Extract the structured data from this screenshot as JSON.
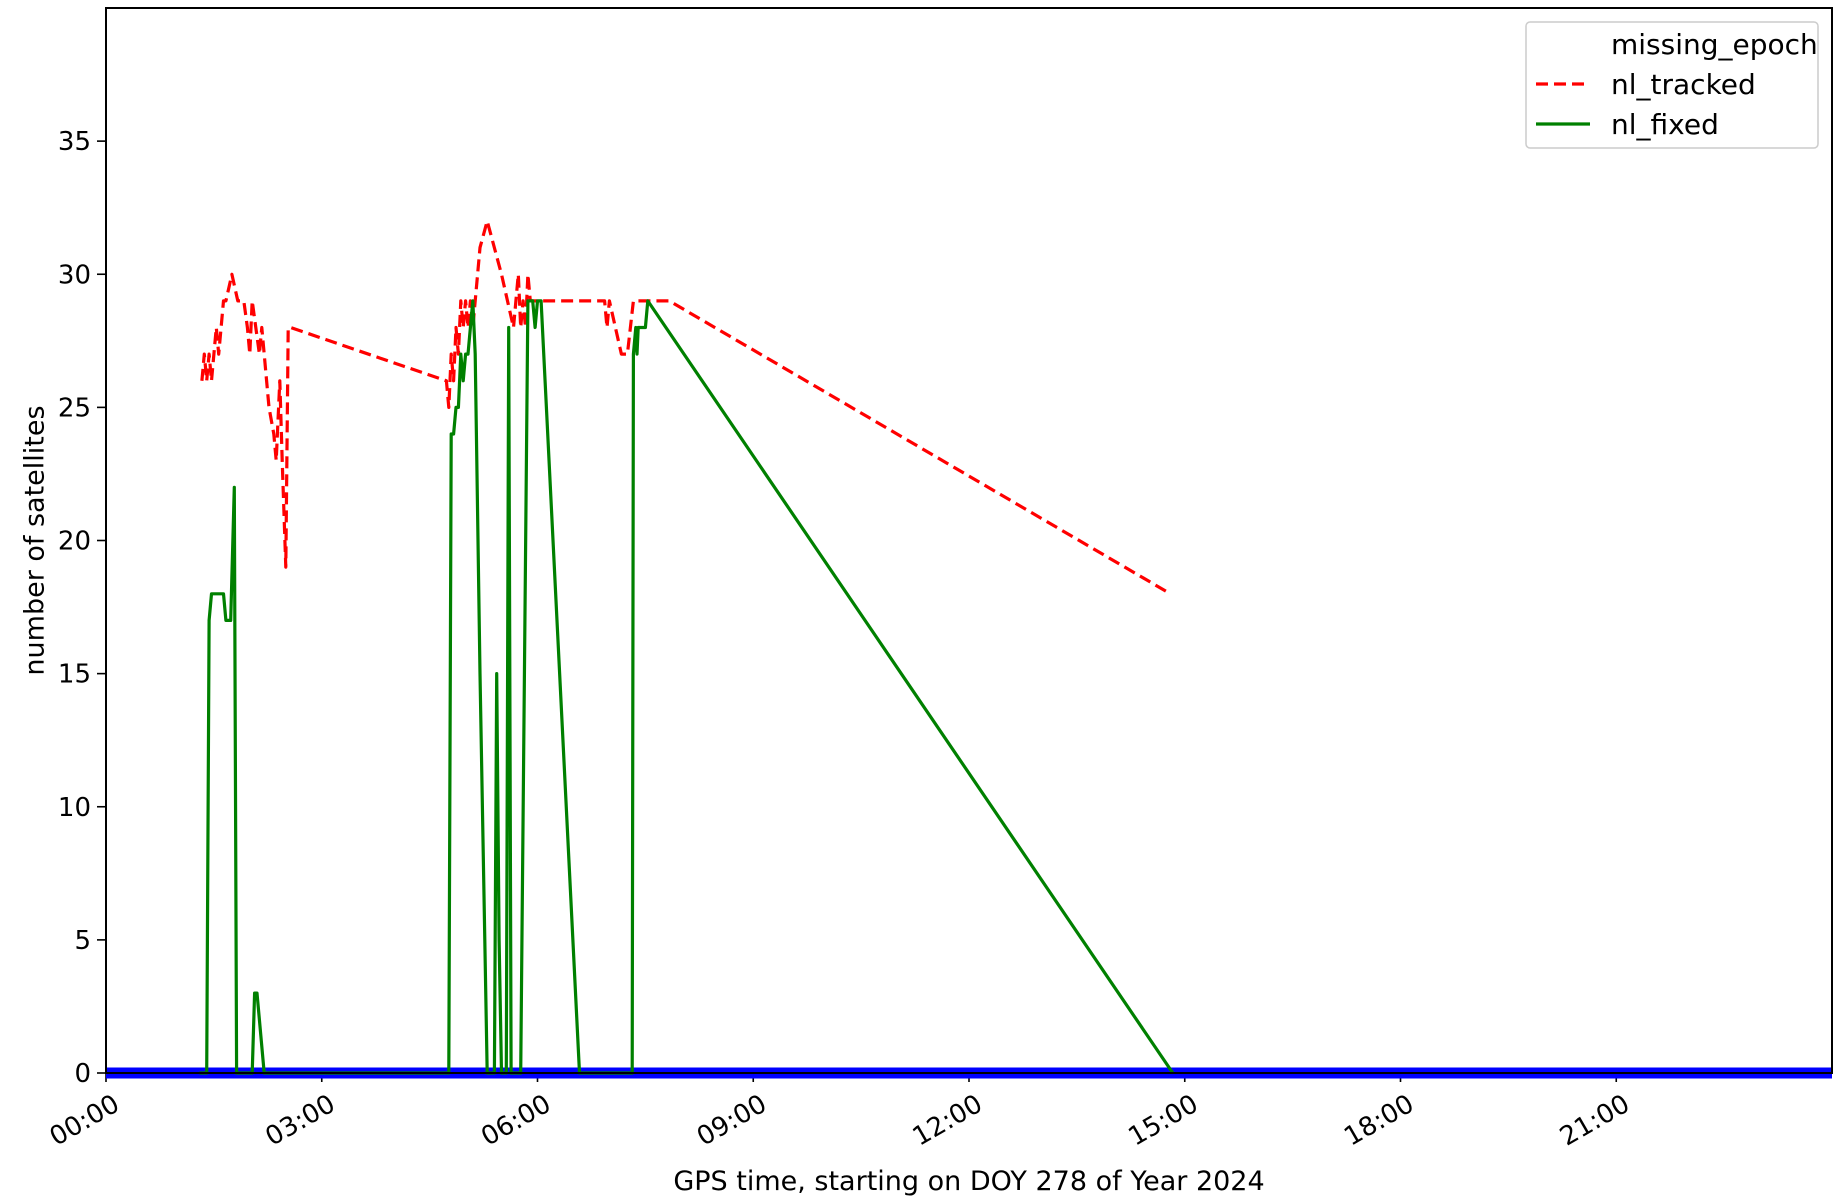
{
  "chart_data": {
    "type": "line",
    "xlabel": "GPS time, starting on DOY 278 of Year 2024",
    "ylabel": "number of satellites",
    "xlim": [
      "00:00",
      "24:00"
    ],
    "ylim": [
      0,
      40
    ],
    "grid": false,
    "legend_position": "top-right",
    "x_ticks": [
      "00:00",
      "03:00",
      "06:00",
      "09:00",
      "12:00",
      "15:00",
      "18:00",
      "21:00"
    ],
    "y_ticks": [
      0,
      5,
      10,
      15,
      20,
      25,
      30,
      35
    ],
    "series": [
      {
        "name": "missing_epoch",
        "color": "#0000ff",
        "style": "markers",
        "x_range": [
          "00:00",
          "24:00"
        ],
        "y": 0
      },
      {
        "name": "nl_tracked",
        "color": "#ff0000",
        "style": "dashed",
        "x": [
          "01:20",
          "01:22",
          "01:24",
          "01:26",
          "01:28",
          "01:30",
          "01:32",
          "01:34",
          "01:36",
          "01:38",
          "01:40",
          "01:45",
          "01:50",
          "01:55",
          "01:58",
          "02:00",
          "02:02",
          "02:05",
          "02:08",
          "02:10",
          "02:14",
          "02:16",
          "02:20",
          "02:22",
          "02:25",
          "02:27",
          "02:30",
          "02:32",
          "02:34",
          "04:44",
          "04:46",
          "04:48",
          "04:50",
          "04:52",
          "04:54",
          "04:56",
          "04:58",
          "05:00",
          "05:02",
          "05:04",
          "05:06",
          "05:08",
          "05:10",
          "05:12",
          "05:18",
          "05:30",
          "05:40",
          "05:42",
          "05:44",
          "05:46",
          "05:48",
          "05:50",
          "05:52",
          "05:54",
          "05:56",
          "05:58",
          "06:00",
          "06:04",
          "06:30",
          "06:56",
          "06:58",
          "07:00",
          "07:05",
          "07:10",
          "07:15",
          "07:20",
          "07:30",
          "07:35",
          "07:40",
          "07:45",
          "07:50",
          "14:48"
        ],
        "y": [
          26,
          27,
          26,
          27,
          26,
          27,
          28,
          27,
          28,
          29,
          29,
          30,
          29,
          29,
          28,
          27,
          29,
          28,
          27,
          28,
          26,
          25,
          24,
          23,
          26,
          23,
          19,
          28,
          28,
          26,
          25,
          27,
          26,
          28,
          27,
          29,
          28,
          29,
          28,
          29,
          28,
          29,
          30,
          31,
          32,
          30,
          28,
          29,
          30,
          28,
          29,
          28,
          30,
          29,
          29,
          29,
          29,
          29,
          29,
          29,
          28,
          29,
          28,
          27,
          27,
          29,
          29,
          29,
          29,
          29,
          29,
          18
        ]
      },
      {
        "name": "nl_fixed",
        "color": "#008000",
        "style": "solid",
        "x": [
          "01:18",
          "01:24",
          "01:26",
          "01:28",
          "01:30",
          "01:38",
          "01:40",
          "01:44",
          "01:47",
          "01:49",
          "02:02",
          "02:04",
          "02:06",
          "02:12",
          "04:46",
          "04:48",
          "04:50",
          "04:52",
          "04:54",
          "04:56",
          "04:58",
          "05:00",
          "05:02",
          "05:04",
          "05:06",
          "05:08",
          "05:12",
          "05:18",
          "05:24",
          "05:26",
          "05:28",
          "05:30",
          "05:34",
          "05:36",
          "05:38",
          "05:40",
          "05:46",
          "05:52",
          "05:56",
          "05:58",
          "06:00",
          "06:03",
          "06:35",
          "06:36",
          "07:10",
          "07:19",
          "07:20",
          "07:22",
          "07:23",
          "07:24",
          "07:25",
          "07:26",
          "07:30",
          "07:32",
          "14:50"
        ],
        "y": [
          0,
          0,
          17,
          18,
          18,
          18,
          17,
          17,
          22,
          0,
          0,
          3,
          3,
          0,
          0,
          24,
          24,
          25,
          25,
          27,
          26,
          27,
          27,
          28,
          29,
          27,
          15,
          0,
          0,
          15,
          5,
          0,
          0,
          28,
          0,
          0,
          0,
          29,
          29,
          28,
          29,
          29,
          0,
          0,
          0,
          0,
          27,
          28,
          27,
          28,
          28,
          28,
          28,
          29,
          0
        ]
      }
    ]
  }
}
